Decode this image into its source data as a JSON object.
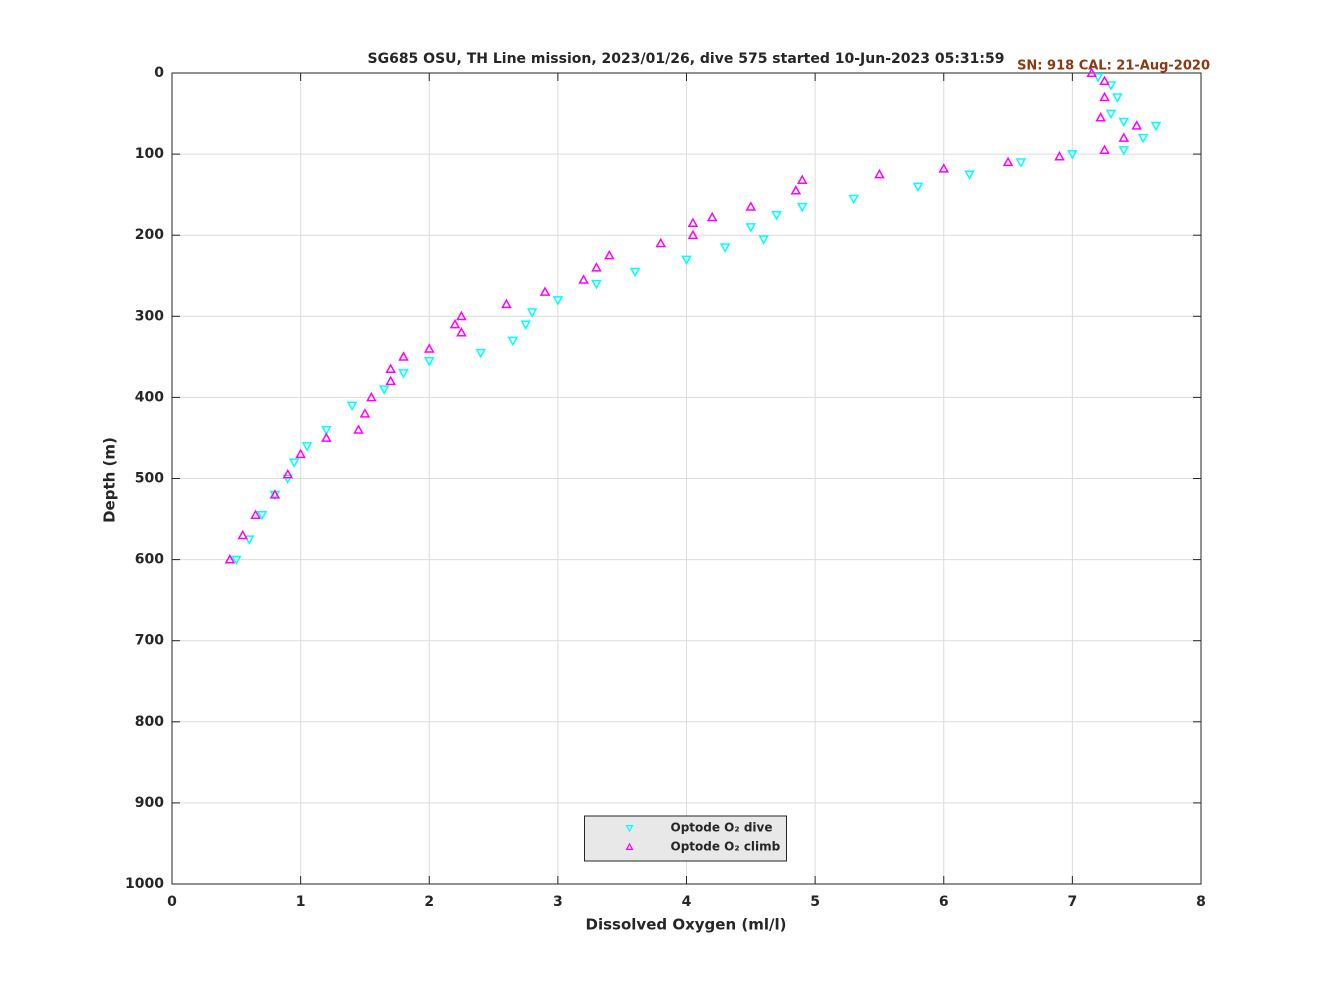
{
  "chart_data": {
    "type": "scatter",
    "title": "SG685 OSU, TH Line mission, 2023/01/26, dive 575 started 10-Jun-2023 05:31:59",
    "subtitle": "SN: 918  CAL: 21-Aug-2020",
    "x_label": "Dissolved Oxygen (ml/l)",
    "y_label": "Depth (m)",
    "xlim": [
      0,
      8
    ],
    "ylim": [
      0,
      1000
    ],
    "y_inverted": true,
    "xticks": [
      0,
      1,
      2,
      3,
      4,
      5,
      6,
      7,
      8
    ],
    "yticks": [
      0,
      100,
      200,
      300,
      400,
      500,
      600,
      700,
      800,
      900,
      1000
    ],
    "grid": true,
    "legend": "lower center",
    "series": [
      {
        "name": "Optode O₂ dive",
        "color": "#00ffff",
        "marker": "v",
        "x": [
          7.2,
          7.3,
          7.35,
          7.3,
          7.4,
          7.65,
          7.55,
          7.4,
          7.0,
          6.6,
          6.2,
          5.8,
          5.3,
          4.9,
          4.7,
          4.5,
          4.6,
          4.3,
          4.0,
          3.6,
          3.3,
          3.0,
          2.8,
          2.75,
          2.65,
          2.4,
          2.0,
          1.8,
          1.65,
          1.4,
          1.2,
          1.05,
          0.95,
          0.9,
          0.8,
          0.7,
          0.6,
          0.5
        ],
        "values": [
          5,
          15,
          30,
          50,
          60,
          65,
          80,
          95,
          100,
          110,
          125,
          140,
          155,
          165,
          175,
          190,
          205,
          215,
          230,
          245,
          260,
          280,
          295,
          310,
          330,
          345,
          355,
          370,
          390,
          410,
          440,
          460,
          480,
          500,
          520,
          545,
          575,
          600
        ]
      },
      {
        "name": "Optode O₂ climb",
        "color": "#ff00ff",
        "marker": "^",
        "x": [
          7.15,
          7.25,
          7.25,
          7.22,
          7.5,
          7.4,
          7.25,
          6.9,
          6.5,
          6.0,
          5.5,
          4.9,
          4.85,
          4.5,
          4.2,
          4.05,
          4.05,
          3.8,
          3.4,
          3.3,
          3.2,
          2.9,
          2.6,
          2.25,
          2.2,
          2.25,
          2.0,
          1.8,
          1.7,
          1.7,
          1.55,
          1.5,
          1.45,
          1.2,
          1.0,
          0.9,
          0.8,
          0.65,
          0.55,
          0.45
        ],
        "values": [
          0,
          10,
          30,
          55,
          65,
          80,
          95,
          103,
          110,
          118,
          125,
          132,
          145,
          165,
          178,
          185,
          200,
          210,
          225,
          240,
          255,
          270,
          285,
          300,
          310,
          320,
          340,
          350,
          365,
          380,
          400,
          420,
          440,
          450,
          470,
          495,
          520,
          545,
          570,
          600
        ]
      }
    ]
  }
}
